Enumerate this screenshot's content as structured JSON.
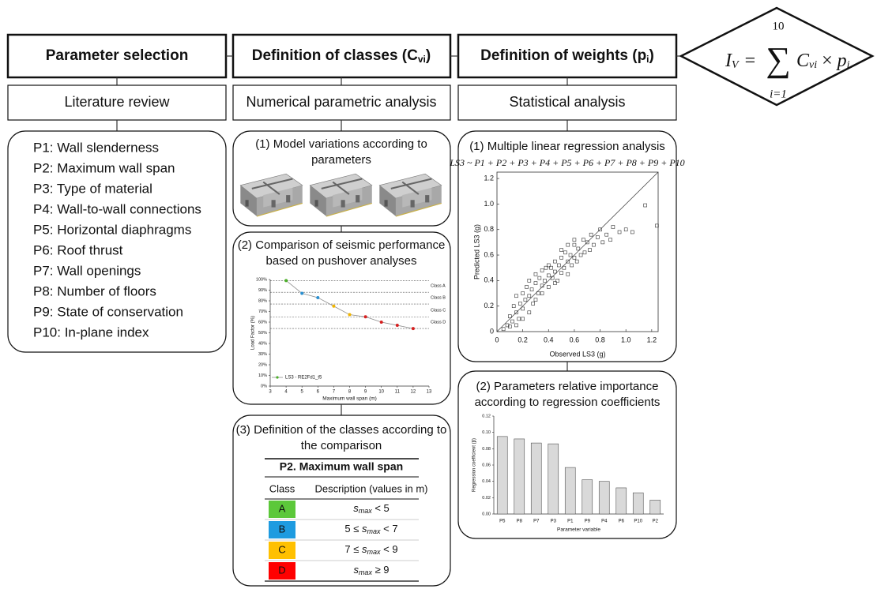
{
  "header": {
    "parameter_selection": "Parameter selection",
    "classes": {
      "text": "Definition of classes (C",
      "sub": "vi",
      "close": ")"
    },
    "weights": {
      "text": "Definition of weights (p",
      "sub": "i",
      "close": ")"
    }
  },
  "formula": {
    "lhs": "I",
    "lhs_sub": "V",
    "equals": "=",
    "sigma": "∑",
    "sum_upper": "10",
    "sum_lower": "i=1",
    "term1": "C",
    "term1_sub": "vi",
    "times": " × ",
    "term2": "p",
    "term2_sub": "i"
  },
  "methods": [
    "Literature review",
    "Numerical parametric analysis",
    "Statistical analysis"
  ],
  "parameters": [
    "P1: Wall slenderness",
    "P2: Maximum wall span",
    "P3: Type of material",
    "P4: Wall-to-wall connections",
    "P5: Horizontal diaphragms",
    "P6: Roof thrust",
    "P7: Wall openings",
    "P8: Number of floors",
    "P9: State of conservation",
    "P10: In-plane index"
  ],
  "model_variations": {
    "title_lines": [
      "(1) Model variations according to",
      "parameters"
    ]
  },
  "pushover": {
    "title_lines": [
      "(2) Comparison of seismic performance",
      "based on pushover analyses"
    ],
    "chart_data": {
      "type": "line",
      "x_label": "Maximum wall span (m)",
      "y_label": "Load Factor (%)",
      "x": [
        4,
        5,
        6,
        7,
        8,
        9,
        10,
        11,
        12
      ],
      "series": [
        {
          "name": "LS3 - RE2Fd1_t5",
          "color": "#8c8c8c",
          "values": [
            99,
            87,
            83,
            75,
            67,
            65,
            60,
            57,
            54
          ],
          "point_colors": [
            "#4caf2a",
            "#2a8fd0",
            "#2a8fd0",
            "#f0b400",
            "#f0b400",
            "#d62020",
            "#d62020",
            "#d62020",
            "#d62020"
          ]
        }
      ],
      "xlim": [
        3,
        13
      ],
      "xticks": [
        3,
        4,
        5,
        6,
        7,
        8,
        9,
        10,
        11,
        12,
        13
      ],
      "ylim": [
        0,
        100
      ],
      "yticks": [
        {
          "value": 0,
          "label": "0%"
        },
        {
          "value": 10,
          "label": "10%"
        },
        {
          "value": 20,
          "label": "20%"
        },
        {
          "value": 30,
          "label": "30%"
        },
        {
          "value": 40,
          "label": "40%"
        },
        {
          "value": 50,
          "label": "50%"
        },
        {
          "value": 60,
          "label": "60%"
        },
        {
          "value": 70,
          "label": "70%"
        },
        {
          "value": 80,
          "label": "80%"
        },
        {
          "value": 90,
          "label": "90%"
        },
        {
          "value": 100,
          "label": "100%"
        }
      ],
      "class_lines": [
        99,
        88,
        77,
        65,
        54
      ],
      "class_labels": [
        {
          "value": 94,
          "label": "Class A"
        },
        {
          "value": 83,
          "label": "Class B"
        },
        {
          "value": 71,
          "label": "Class C"
        },
        {
          "value": 60,
          "label": "Class D"
        }
      ]
    }
  },
  "classes_table": {
    "title_lines": [
      "(3) Definition of the classes according to",
      "the comparison"
    ],
    "title": "P2. Maximum wall span",
    "headers": [
      "Class",
      "Description (values in m)"
    ],
    "rows": [
      {
        "class": "A",
        "color": "#5cc83a",
        "var": "s",
        "sub": "max",
        "post": " < 5"
      },
      {
        "class": "B",
        "color": "#1e9be0",
        "pre": "5 ≤ ",
        "var": "s",
        "sub": "max",
        "post": " < 7"
      },
      {
        "class": "C",
        "color": "#ffc000",
        "pre": "7 ≤ ",
        "var": "s",
        "sub": "max",
        "post": " < 9"
      },
      {
        "class": "D",
        "color": "#ff0000",
        "var": "s",
        "sub": "max",
        "post": " ≥ 9"
      }
    ]
  },
  "regression": {
    "title": "(1) Multiple linear regression analysis",
    "model": "LS3 ~ P1 + P2 + P3 + P4 + P5 + P6 + P7 + P8 + P9 + P10",
    "chart_data": {
      "type": "scatter",
      "x_label": "Observed LS3 (g)",
      "y_label": "Predicted LS3 (g)",
      "x": [
        0.05,
        0.08,
        0.1,
        0.12,
        0.13,
        0.15,
        0.15,
        0.17,
        0.18,
        0.2,
        0.2,
        0.22,
        0.23,
        0.25,
        0.25,
        0.27,
        0.28,
        0.3,
        0.3,
        0.32,
        0.33,
        0.35,
        0.35,
        0.37,
        0.38,
        0.4,
        0.4,
        0.42,
        0.43,
        0.45,
        0.45,
        0.47,
        0.48,
        0.5,
        0.5,
        0.52,
        0.53,
        0.55,
        0.55,
        0.57,
        0.58,
        0.6,
        0.6,
        0.62,
        0.63,
        0.65,
        0.67,
        0.68,
        0.7,
        0.72,
        0.73,
        0.75,
        0.78,
        0.8,
        0.82,
        0.85,
        0.88,
        0.9,
        0.95,
        1.0,
        1.05,
        1.15,
        1.24,
        0.1,
        0.2,
        0.3,
        0.4,
        0.5,
        0.6,
        0.15,
        0.25,
        0.35,
        0.45,
        0.55
      ],
      "y": [
        0.02,
        0.05,
        0.12,
        0.08,
        0.2,
        0.15,
        0.28,
        0.1,
        0.22,
        0.3,
        0.18,
        0.25,
        0.35,
        0.28,
        0.4,
        0.33,
        0.22,
        0.38,
        0.45,
        0.3,
        0.42,
        0.36,
        0.48,
        0.4,
        0.5,
        0.44,
        0.35,
        0.5,
        0.42,
        0.47,
        0.55,
        0.4,
        0.52,
        0.46,
        0.58,
        0.5,
        0.62,
        0.55,
        0.45,
        0.6,
        0.52,
        0.58,
        0.68,
        0.55,
        0.65,
        0.6,
        0.72,
        0.62,
        0.7,
        0.64,
        0.76,
        0.68,
        0.74,
        0.8,
        0.7,
        0.76,
        0.72,
        0.82,
        0.78,
        0.8,
        0.78,
        0.99,
        0.83,
        0.04,
        0.1,
        0.25,
        0.52,
        0.64,
        0.72,
        0.05,
        0.15,
        0.3,
        0.38,
        0.68
      ],
      "xlim": [
        0,
        1.25
      ],
      "xticks": [
        0,
        0.2,
        0.4,
        0.6,
        0.8,
        {
          "value": 1,
          "label": "1.0"
        },
        1.2
      ],
      "ylim": [
        0,
        1.25
      ],
      "yticks": [
        0,
        0.2,
        0.4,
        0.6,
        0.8,
        {
          "value": 1,
          "label": "1.0"
        },
        1.2
      ]
    }
  },
  "importance": {
    "title_lines": [
      "(2) Parameters relative importance",
      "according to regression coefficients"
    ],
    "chart_data": {
      "type": "bar",
      "x_label": "Parameter variable",
      "y_label": "Regression coefficient (β)",
      "categories": [
        "P5",
        "P8",
        "P7",
        "P3",
        "P1",
        "P9",
        "P4",
        "P6",
        "P10",
        "P2"
      ],
      "values": [
        0.095,
        0.092,
        0.087,
        0.086,
        0.057,
        0.042,
        0.04,
        0.032,
        0.026,
        0.017
      ],
      "color": "#d9d9d9",
      "ylim": [
        0,
        0.12
      ],
      "yticks": [
        {
          "value": 0,
          "label": "0.00"
        },
        {
          "value": 0.02,
          "label": "0.02"
        },
        {
          "value": 0.04,
          "label": "0.04"
        },
        {
          "value": 0.06,
          "label": "0.06"
        },
        {
          "value": 0.08,
          "label": "0.08"
        },
        {
          "value": 0.1,
          "label": "0.10"
        },
        {
          "value": 0.12,
          "label": "0.12"
        }
      ]
    }
  }
}
